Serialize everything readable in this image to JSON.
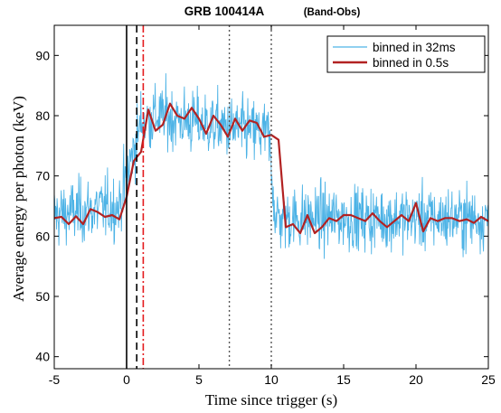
{
  "chart_data": {
    "type": "line",
    "title": "GRB 100414A",
    "subtitle": "(Band-Obs)",
    "xlabel": "Time since trigger (s)",
    "ylabel": "Average energy per photon (keV)",
    "xlim": [
      -5,
      25
    ],
    "ylim": [
      38,
      95
    ],
    "xticks": [
      -5,
      0,
      5,
      10,
      15,
      20,
      25
    ],
    "yticks": [
      40,
      50,
      60,
      70,
      80,
      90
    ],
    "grid": false,
    "legend_position": "top-right",
    "series": [
      {
        "name": "binned in 32ms",
        "color": "#4db3e6",
        "style": "noisy-32ms",
        "segments": [
          {
            "x": -5.0,
            "y": 63.5
          },
          {
            "x": -0.5,
            "y": 65.0
          },
          {
            "x": 0.0,
            "y": 70.0
          },
          {
            "x": 1.0,
            "y": 79.0
          },
          {
            "x": 2.0,
            "y": 80.0
          },
          {
            "x": 7.0,
            "y": 78.0
          },
          {
            "x": 9.8,
            "y": 77.0
          },
          {
            "x": 10.3,
            "y": 63.0
          },
          {
            "x": 25.0,
            "y": 63.0
          }
        ],
        "noise_amplitude_keV": 5.0
      },
      {
        "name": "binned in 0.5s",
        "color": "#b22222",
        "x": [
          -5.0,
          -4.5,
          -4.0,
          -3.5,
          -3.0,
          -2.5,
          -2.0,
          -1.5,
          -1.0,
          -0.5,
          0.0,
          0.5,
          1.0,
          1.5,
          2.0,
          2.5,
          3.0,
          3.5,
          4.0,
          4.5,
          5.0,
          5.5,
          6.0,
          6.5,
          7.0,
          7.5,
          8.0,
          8.5,
          9.0,
          9.5,
          10.0,
          10.5,
          11.0,
          11.5,
          12.0,
          12.5,
          13.0,
          13.5,
          14.0,
          14.5,
          15.0,
          15.5,
          16.0,
          16.5,
          17.0,
          17.5,
          18.0,
          18.5,
          19.0,
          19.5,
          20.0,
          20.5,
          21.0,
          21.5,
          22.0,
          22.5,
          23.0,
          23.5,
          24.0,
          24.5,
          25.0
        ],
        "y": [
          63.0,
          63.2,
          62.0,
          63.3,
          62.0,
          64.5,
          64.0,
          63.2,
          63.5,
          62.8,
          66.5,
          72.5,
          74.0,
          81.0,
          77.5,
          78.5,
          82.0,
          80.0,
          79.5,
          81.3,
          79.5,
          77.0,
          80.0,
          78.5,
          76.5,
          79.5,
          77.5,
          79.2,
          78.8,
          76.5,
          76.8,
          76.0,
          61.5,
          62.0,
          60.5,
          63.5,
          60.5,
          61.5,
          63.0,
          62.5,
          63.5,
          63.5,
          63.0,
          62.5,
          63.8,
          62.5,
          61.5,
          62.5,
          63.5,
          62.5,
          65.5,
          60.8,
          63.0,
          62.5,
          63.0,
          63.0,
          62.5,
          62.8,
          62.2,
          63.2,
          62.5
        ]
      }
    ],
    "vertical_lines": [
      {
        "x": 0.0,
        "style": "solid",
        "color": "#000000"
      },
      {
        "x": 0.7,
        "style": "dashed",
        "color": "#000000"
      },
      {
        "x": 1.15,
        "style": "dashdot",
        "color": "#e41a1c"
      },
      {
        "x": 7.1,
        "style": "dotted",
        "color": "#555555"
      },
      {
        "x": 10.0,
        "style": "dotted",
        "color": "#555555"
      }
    ]
  }
}
